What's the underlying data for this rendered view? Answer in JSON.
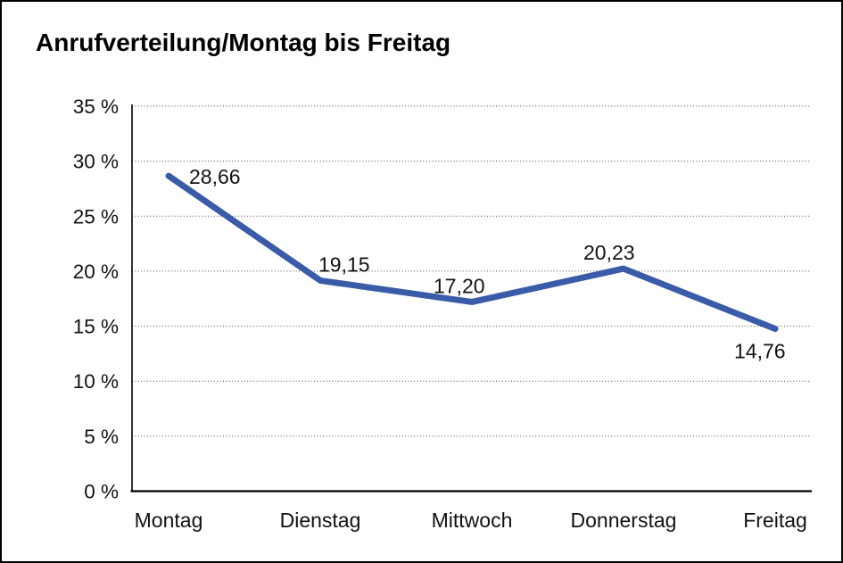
{
  "chart_data": {
    "type": "line",
    "title": "Anrufverteilung/Montag bis Freitag",
    "categories": [
      "Montag",
      "Dienstag",
      "Mittwoch",
      "Donnerstag",
      "Freitag"
    ],
    "series": [
      {
        "name": "Anrufverteilung",
        "values": [
          28.66,
          19.15,
          17.2,
          20.23,
          14.76
        ]
      }
    ],
    "value_labels": [
      "28,66",
      "19,15",
      "17,20",
      "20,23",
      "14,76"
    ],
    "y_ticks": [
      "0 %",
      "5 %",
      "10 %",
      "15 %",
      "20 %",
      "25 %",
      "30 %",
      "35 %"
    ],
    "ylim": [
      0,
      35
    ],
    "y_step": 5,
    "xlabel": "",
    "ylabel": "",
    "legend": "none",
    "grid": "horizontal-dotted",
    "line_color": "#3a5ca8",
    "axis_color": "#000000",
    "grid_color": "#4a4a4a",
    "text_color": "#111111",
    "decimal_separator": ","
  }
}
